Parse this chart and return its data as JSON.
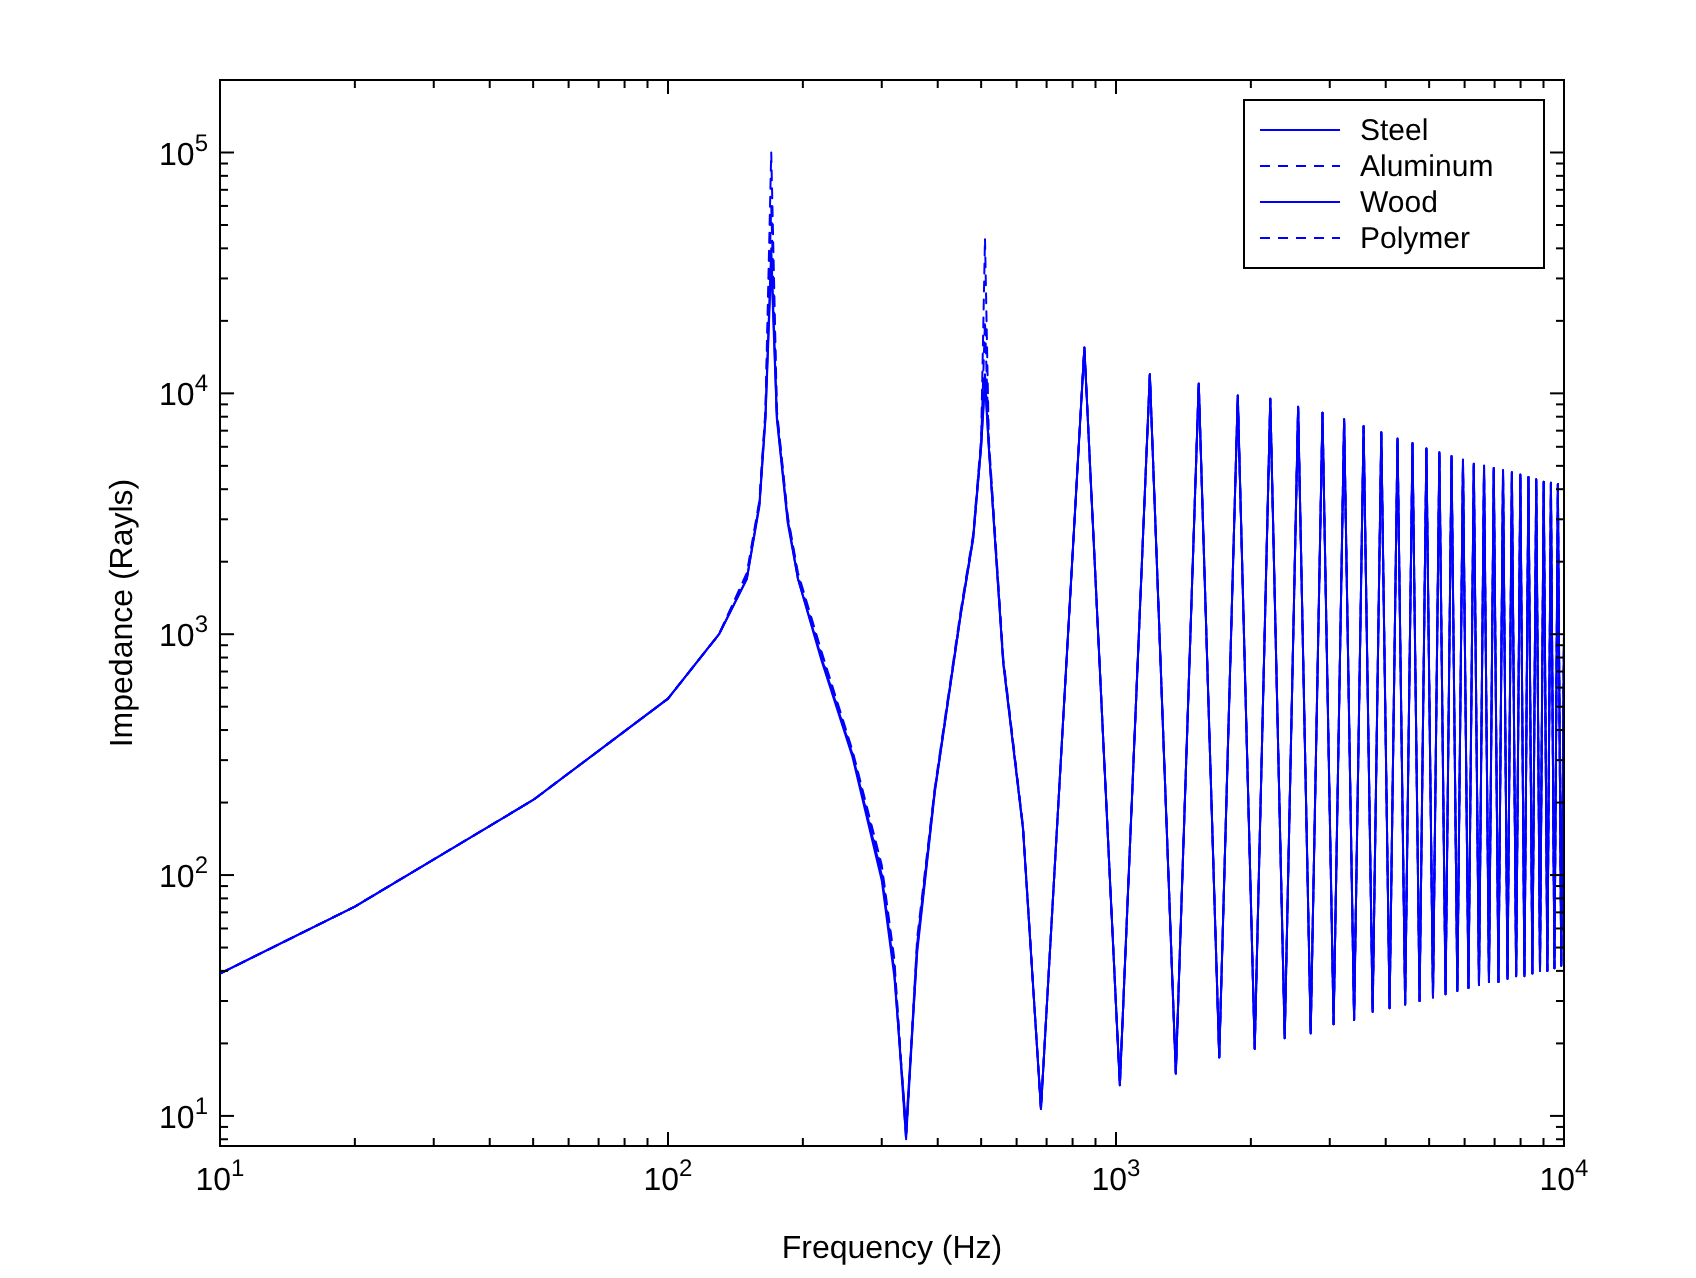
{
  "chart_data": {
    "type": "line",
    "xlabel": "Frequency (Hz)",
    "ylabel": "Impedance (Rayls)",
    "log": "xy",
    "grid": false,
    "legend": "top right",
    "xlim": [
      10,
      10000
    ],
    "ylim": [
      7.5,
      200000
    ],
    "xticks": [
      {
        "value": 10,
        "label": "10$^{1}$"
      },
      {
        "value": 20,
        "label": null
      },
      {
        "value": 30,
        "label": null
      },
      {
        "value": 40,
        "label": null
      },
      {
        "value": 50,
        "label": null
      },
      {
        "value": 60,
        "label": null
      },
      {
        "value": 70,
        "label": null
      },
      {
        "value": 80,
        "label": null
      },
      {
        "value": 90,
        "label": null
      },
      {
        "value": 100,
        "label": "10$^{2}$"
      },
      {
        "value": 200,
        "label": null
      },
      {
        "value": 300,
        "label": null
      },
      {
        "value": 400,
        "label": null
      },
      {
        "value": 500,
        "label": null
      },
      {
        "value": 600,
        "label": null
      },
      {
        "value": 700,
        "label": null
      },
      {
        "value": 800,
        "label": null
      },
      {
        "value": 900,
        "label": null
      },
      {
        "value": 1000,
        "label": "10$^{3}$"
      },
      {
        "value": 2000,
        "label": null
      },
      {
        "value": 3000,
        "label": null
      },
      {
        "value": 4000,
        "label": null
      },
      {
        "value": 5000,
        "label": null
      },
      {
        "value": 6000,
        "label": null
      },
      {
        "value": 7000,
        "label": null
      },
      {
        "value": 8000,
        "label": null
      },
      {
        "value": 9000,
        "label": null
      },
      {
        "value": 10000,
        "label": "10$^{4}$"
      }
    ],
    "yticks": [
      {
        "value": 8,
        "label": null
      },
      {
        "value": 9,
        "label": null
      },
      {
        "value": 10,
        "label": "10$^{1}$"
      },
      {
        "value": 20,
        "label": null
      },
      {
        "value": 30,
        "label": null
      },
      {
        "value": 40,
        "label": null
      },
      {
        "value": 50,
        "label": null
      },
      {
        "value": 60,
        "label": null
      },
      {
        "value": 70,
        "label": null
      },
      {
        "value": 80,
        "label": null
      },
      {
        "value": 90,
        "label": null
      },
      {
        "value": 100,
        "label": "10$^{2}$"
      },
      {
        "value": 200,
        "label": null
      },
      {
        "value": 300,
        "label": null
      },
      {
        "value": 400,
        "label": null
      },
      {
        "value": 500,
        "label": null
      },
      {
        "value": 600,
        "label": null
      },
      {
        "value": 700,
        "label": null
      },
      {
        "value": 800,
        "label": null
      },
      {
        "value": 900,
        "label": null
      },
      {
        "value": 1000,
        "label": "10$^{3}$"
      },
      {
        "value": 2000,
        "label": null
      },
      {
        "value": 3000,
        "label": null
      },
      {
        "value": 4000,
        "label": null
      },
      {
        "value": 5000,
        "label": null
      },
      {
        "value": 6000,
        "label": null
      },
      {
        "value": 7000,
        "label": null
      },
      {
        "value": 8000,
        "label": null
      },
      {
        "value": 9000,
        "label": null
      },
      {
        "value": 10000,
        "label": "10$^{4}$"
      },
      {
        "value": 20000,
        "label": null
      },
      {
        "value": 30000,
        "label": null
      },
      {
        "value": 40000,
        "label": null
      },
      {
        "value": 50000,
        "label": null
      },
      {
        "value": 60000,
        "label": null
      },
      {
        "value": 70000,
        "label": null
      },
      {
        "value": 80000,
        "label": null
      },
      {
        "value": 90000,
        "label": null
      },
      {
        "value": 100000,
        "label": "10$^{5}$"
      }
    ],
    "x": [
      10,
      20,
      50,
      100,
      130,
      150,
      160,
      165,
      170,
      175,
      185,
      195,
      220,
      258,
      300,
      320,
      340,
      360,
      394,
      450,
      480,
      500,
      510,
      520,
      560,
      620,
      680,
      850,
      1020,
      1190,
      1360,
      1530,
      1700,
      1870,
      2040,
      2210,
      2380,
      2550,
      2720,
      2890,
      3060,
      3230,
      3400,
      3570,
      3740,
      3910,
      4080,
      4250,
      4420,
      4590,
      4760,
      4930,
      5100,
      5270,
      5440,
      5610,
      5780,
      5950,
      6120,
      6290,
      6460,
      6630,
      6800,
      6970,
      7140,
      7310,
      7480,
      7650,
      7820,
      7990,
      8160,
      8330,
      8500,
      8670,
      8840,
      9010,
      9180,
      9350,
      9520,
      9690,
      9860,
      10000
    ],
    "series": [
      {
        "name": "Steel",
        "color": "#0000ff",
        "line_style": "solid",
        "values": [
          39,
          74,
          205,
          540,
          1000,
          1700,
          3500,
          8000,
          40000,
          8000,
          3000,
          1700,
          800,
          318,
          100,
          40,
          8,
          50,
          224,
          1200,
          2500,
          6000,
          12000,
          6000,
          770,
          157,
          10.7,
          15500,
          13.4,
          12000,
          15,
          11000,
          17.5,
          9800,
          19,
          9500,
          21,
          8800,
          22,
          8300,
          24,
          7800,
          25,
          7300,
          27,
          6900,
          28,
          6500,
          29,
          6200,
          30,
          5900,
          31,
          5700,
          32,
          5500,
          33,
          5300,
          34,
          5100,
          35,
          5000,
          36,
          4900,
          36,
          4800,
          37,
          4700,
          38,
          4600,
          38,
          4500,
          39,
          4400,
          40,
          4300,
          40,
          4250,
          41,
          4200,
          42,
          1000
        ]
      },
      {
        "name": "Aluminum",
        "color": "#0000ff",
        "line_style": "dashed",
        "values": [
          39,
          74,
          205,
          540,
          1000,
          1800,
          3600,
          8500,
          100000,
          8500,
          3100,
          1800,
          850,
          330,
          110,
          45,
          8,
          55,
          230,
          1250,
          2600,
          6500,
          44000,
          6500,
          800,
          160,
          10.7,
          15500,
          13.4,
          12000,
          15,
          11000,
          17.5,
          9800,
          19,
          9500,
          21,
          8800,
          22,
          8300,
          24,
          7800,
          25,
          7300,
          27,
          6900,
          28,
          6500,
          29,
          6200,
          30,
          5900,
          31,
          5700,
          32,
          5500,
          33,
          5300,
          34,
          5100,
          35,
          5000,
          36,
          4900,
          36,
          4800,
          37,
          4700,
          38,
          4600,
          38,
          4500,
          39,
          4400,
          40,
          4300,
          40,
          4250,
          41,
          4200,
          42,
          1000
        ]
      },
      {
        "name": "Wood",
        "color": "#0000ff",
        "line_style": "solid",
        "values": [
          39,
          74,
          205,
          540,
          1000,
          1700,
          3400,
          7800,
          35000,
          7800,
          2900,
          1700,
          780,
          310,
          95,
          38,
          9,
          48,
          220,
          1200,
          2500,
          6000,
          11000,
          6000,
          760,
          155,
          10.7,
          15500,
          13.4,
          12000,
          15,
          11000,
          17.5,
          9800,
          19,
          9500,
          21,
          8800,
          22,
          8300,
          24,
          7800,
          25,
          7300,
          27,
          6900,
          28,
          6500,
          29,
          6200,
          30,
          5900,
          31,
          5700,
          32,
          5500,
          33,
          5300,
          34,
          5100,
          35,
          5000,
          36,
          4900,
          36,
          4800,
          37,
          4700,
          38,
          4600,
          38,
          4500,
          39,
          4400,
          40,
          4300,
          40,
          4250,
          41,
          4200,
          42,
          1000
        ]
      },
      {
        "name": "Polymer",
        "color": "#0000ff",
        "line_style": "dashed",
        "values": [
          39,
          74,
          205,
          540,
          1000,
          1750,
          3500,
          8200,
          60000,
          8200,
          3050,
          1750,
          820,
          320,
          105,
          42,
          8.5,
          52,
          225,
          1220,
          2550,
          6200,
          20000,
          6200,
          780,
          158,
          10.7,
          15500,
          13.4,
          12000,
          15,
          11000,
          17.5,
          9800,
          19,
          9500,
          21,
          8800,
          22,
          8300,
          24,
          7800,
          25,
          7300,
          27,
          6900,
          28,
          6500,
          29,
          6200,
          30,
          5900,
          31,
          5700,
          32,
          5500,
          33,
          5300,
          34,
          5100,
          35,
          5000,
          36,
          4900,
          36,
          4800,
          37,
          4700,
          38,
          4600,
          38,
          4500,
          39,
          4400,
          40,
          4300,
          40,
          4250,
          41,
          4200,
          42,
          1000
        ]
      }
    ]
  }
}
